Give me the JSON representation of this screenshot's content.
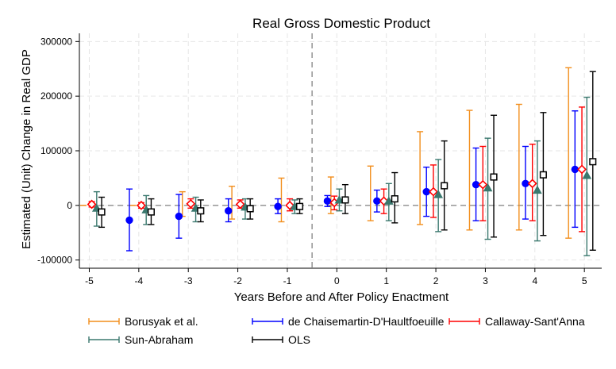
{
  "chart_data": {
    "type": "scatter",
    "title": "Real Gross Domestic Product",
    "xlabel": "Years Before and After Policy Enactment",
    "ylabel": "Estimated (Unit) Change in Real GDP",
    "xlim": [
      -5.2,
      5.35
    ],
    "ylim": [
      -115000,
      315000
    ],
    "x_ticks": [
      -5,
      -4,
      -3,
      -2,
      -1,
      0,
      1,
      2,
      3,
      4,
      5
    ],
    "y_ticks": [
      -100000,
      0,
      100000,
      200000,
      300000
    ],
    "y_tick_labels": [
      "-100000",
      "0",
      "100000",
      "200000",
      "300000"
    ],
    "x_tick_labels": [
      "-5",
      "-4",
      "-3",
      "-2",
      "-1",
      "0",
      "1",
      "2",
      "3",
      "4",
      "5"
    ],
    "reference_lines": {
      "zero_line": 0,
      "treatment_line": -0.5
    },
    "grid": true,
    "legend_position": "bottom",
    "series": [
      {
        "name": "Borusyak et al.",
        "color": "#f28e1c",
        "marker": "none",
        "x": [
          -5.12,
          -4.12,
          -3.12,
          -2.12,
          -1.12,
          -0.12,
          0.68,
          1.68,
          2.68,
          3.68,
          4.68
        ],
        "y": [
          0,
          0,
          0,
          0,
          10000,
          18000,
          22000,
          50000,
          65000,
          70000,
          95000
        ],
        "lower": [
          0,
          0,
          -20000,
          -25000,
          -30000,
          -15000,
          -28000,
          -35000,
          -45000,
          -45000,
          -60000
        ],
        "upper": [
          0,
          0,
          25000,
          35000,
          50000,
          52000,
          72000,
          135000,
          174000,
          185000,
          252000
        ]
      },
      {
        "name": "de Chaisemartin-D'Haultfoeuille",
        "color": "#0000ff",
        "marker": "circle",
        "x": [
          -4.19,
          -3.19,
          -2.19,
          -1.19,
          -0.19,
          0.81,
          1.81,
          2.81,
          3.81,
          4.81
        ],
        "y": [
          -27000,
          -20000,
          -10000,
          -2000,
          8000,
          8000,
          25000,
          38000,
          40000,
          66000
        ],
        "lower": [
          -83000,
          -60000,
          -30000,
          -15000,
          -2000,
          -12000,
          -20000,
          -28000,
          -25000,
          -40000
        ],
        "upper": [
          30000,
          20000,
          12000,
          12000,
          18000,
          28000,
          70000,
          105000,
          108000,
          173000
        ]
      },
      {
        "name": "Callaway-Sant'Anna",
        "color": "#ff0000",
        "marker": "diamond",
        "x": [
          -4.95,
          -3.95,
          -2.95,
          -1.95,
          -0.95,
          -0.05,
          0.95,
          1.95,
          2.95,
          3.95,
          4.95
        ],
        "y": [
          2000,
          0,
          3000,
          2000,
          0,
          5000,
          8000,
          25000,
          38000,
          40000,
          66000
        ],
        "lower": [
          -3000,
          -5000,
          -5000,
          -5000,
          -10000,
          -8000,
          -15000,
          -22000,
          -28000,
          -28000,
          -48000
        ],
        "upper": [
          7000,
          5000,
          12000,
          10000,
          12000,
          17000,
          30000,
          74000,
          108000,
          112000,
          180000
        ]
      },
      {
        "name": "Sun-Abraham",
        "color": "#3a786e",
        "marker": "triangle",
        "x": [
          -4.85,
          -3.85,
          -2.85,
          -1.85,
          -0.85,
          0.05,
          1.05,
          2.05,
          3.05,
          4.05,
          5.05
        ],
        "y": [
          -5000,
          -8000,
          -5000,
          -3000,
          -2000,
          10000,
          8000,
          20000,
          32000,
          28000,
          55000
        ],
        "lower": [
          -38000,
          -35000,
          -30000,
          -25000,
          -15000,
          -10000,
          -28000,
          -48000,
          -62000,
          -65000,
          -92000
        ],
        "upper": [
          25000,
          18000,
          15000,
          12000,
          10000,
          30000,
          40000,
          84000,
          123000,
          118000,
          198000
        ]
      },
      {
        "name": "OLS",
        "color": "#000000",
        "marker": "square",
        "x": [
          -4.75,
          -3.75,
          -2.75,
          -1.75,
          -0.75,
          0.17,
          1.17,
          2.17,
          3.17,
          4.17,
          5.17
        ],
        "y": [
          -12000,
          -12000,
          -10000,
          -6000,
          -2000,
          10000,
          12000,
          36000,
          52000,
          56000,
          80000
        ],
        "lower": [
          -40000,
          -35000,
          -30000,
          -25000,
          -15000,
          -15000,
          -32000,
          -45000,
          -58000,
          -55000,
          -82000
        ],
        "upper": [
          15000,
          12000,
          10000,
          12000,
          12000,
          38000,
          60000,
          118000,
          165000,
          170000,
          245000
        ]
      }
    ]
  }
}
